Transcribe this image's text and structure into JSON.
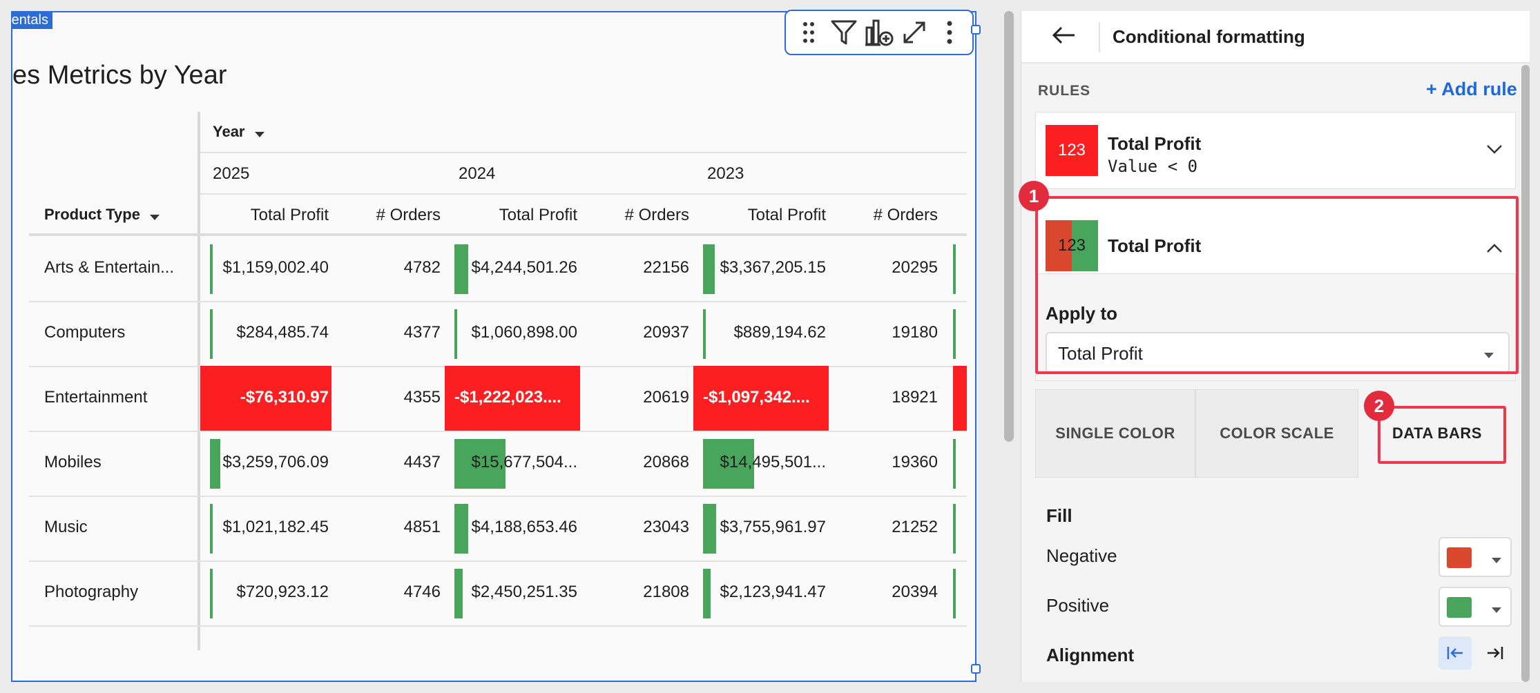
{
  "element": {
    "tag_label": "entals",
    "title": "es Metrics by Year"
  },
  "toolbar": {
    "icons": [
      "drag-handle-icon",
      "filter-icon",
      "add-chart-icon",
      "expand-icon",
      "more-icon"
    ]
  },
  "table": {
    "column_group_label": "Year",
    "row_header_label": "Product Type",
    "years": [
      "2025",
      "2024",
      "2023"
    ],
    "measure_labels": [
      "Total Profit",
      "# Orders"
    ],
    "rows": [
      {
        "product": "Arts & Entertain...",
        "cells": [
          {
            "profit": "$1,159,002.40",
            "orders": "4782",
            "bar": 0.074
          },
          {
            "profit": "$4,244,501.26",
            "orders": "22156",
            "bar": 0.27
          },
          {
            "profit": "$3,367,205.15",
            "orders": "20295",
            "bar": 0.23
          }
        ]
      },
      {
        "product": "Computers",
        "cells": [
          {
            "profit": "$284,485.74",
            "orders": "4377",
            "bar": 0.018
          },
          {
            "profit": "$1,060,898.00",
            "orders": "20937",
            "bar": 0.068
          },
          {
            "profit": "$889,194.62",
            "orders": "19180",
            "bar": 0.061
          }
        ]
      },
      {
        "product": "Entertainment",
        "negative": true,
        "cells": [
          {
            "profit": "-$76,310.97",
            "orders": "4355",
            "bar": 1
          },
          {
            "profit": "-$1,222,023....",
            "orders": "20619",
            "bar": 1
          },
          {
            "profit": "-$1,097,342....",
            "orders": "18921",
            "bar": 1
          }
        ]
      },
      {
        "product": "Mobiles",
        "cells": [
          {
            "profit": "$3,259,706.09",
            "orders": "4437",
            "bar": 0.208
          },
          {
            "profit": "$15,677,504...",
            "orders": "20868",
            "bar": 1
          },
          {
            "profit": "$14,495,501...",
            "orders": "19360",
            "bar": 1
          }
        ]
      },
      {
        "product": "Music",
        "cells": [
          {
            "profit": "$1,021,182.45",
            "orders": "4851",
            "bar": 0.065
          },
          {
            "profit": "$4,188,653.46",
            "orders": "23043",
            "bar": 0.267
          },
          {
            "profit": "$3,755,961.97",
            "orders": "21252",
            "bar": 0.259
          }
        ]
      },
      {
        "product": "Photography",
        "cells": [
          {
            "profit": "$720,923.12",
            "orders": "4746",
            "bar": 0.046
          },
          {
            "profit": "$2,450,251.35",
            "orders": "21808",
            "bar": 0.156
          },
          {
            "profit": "$2,123,941.47",
            "orders": "20394",
            "bar": 0.146
          }
        ]
      }
    ]
  },
  "panel": {
    "back_label": "←",
    "title": "Conditional formatting",
    "rules_label": "RULES",
    "add_rule_label": "+ Add rule",
    "rules": [
      {
        "swatch_text": "123",
        "name": "Total Profit",
        "condition": "Value < 0"
      },
      {
        "swatch_text": "123",
        "name": "Total Profit"
      }
    ],
    "apply_to_label": "Apply to",
    "apply_to_value": "Total Profit",
    "tabs": [
      "SINGLE COLOR",
      "COLOR SCALE",
      "DATA BARS"
    ],
    "fill_label": "Fill",
    "negative_label": "Negative",
    "positive_label": "Positive",
    "alignment_label": "Alignment",
    "badges": [
      "1",
      "2"
    ]
  },
  "colors": {
    "accent": "#2d6bd6",
    "negative_highlight": "#fb1f22",
    "bar_green": "#4aa55c",
    "bar_red": "#d9472c",
    "annotation_red": "#f0374b"
  }
}
